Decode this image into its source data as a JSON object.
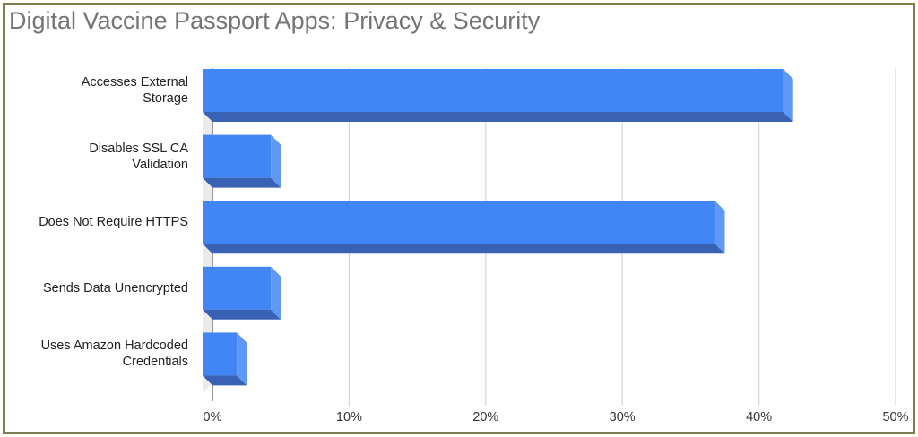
{
  "title": "Digital Vaccine Passport Apps: Privacy & Security",
  "colors": {
    "bar_front": "#4285f4",
    "bar_top": "#3a62b4",
    "bar_side": "#5f98f5",
    "grid": "#d6d6d6",
    "frame": "#7b7d4f",
    "wall": "#ebebeb"
  },
  "chart_data": {
    "type": "bar",
    "orientation": "horizontal",
    "style": "3d",
    "title": "Digital Vaccine Passport Apps: Privacy & Security",
    "categories": [
      "Accesses External Storage",
      "Disables SSL CA Validation",
      "Does Not Require HTTPS",
      "Sends Data Unencrypted",
      "Uses Amazon Hardcoded Credentials"
    ],
    "category_lines": [
      [
        "Accesses External",
        "Storage"
      ],
      [
        "Disables SSL CA",
        "Validation"
      ],
      [
        "Does Not Require HTTPS"
      ],
      [
        "Sends Data Unencrypted"
      ],
      [
        "Uses Amazon Hardcoded",
        "Credentials"
      ]
    ],
    "values": [
      42.5,
      5.0,
      37.5,
      5.0,
      2.5
    ],
    "unit": "%",
    "xlabel": "",
    "ylabel": "",
    "xlim": [
      0,
      50
    ],
    "x_ticks": [
      "0%",
      "10%",
      "20%",
      "30%",
      "40%",
      "50%"
    ],
    "grid": true,
    "legend": null
  }
}
